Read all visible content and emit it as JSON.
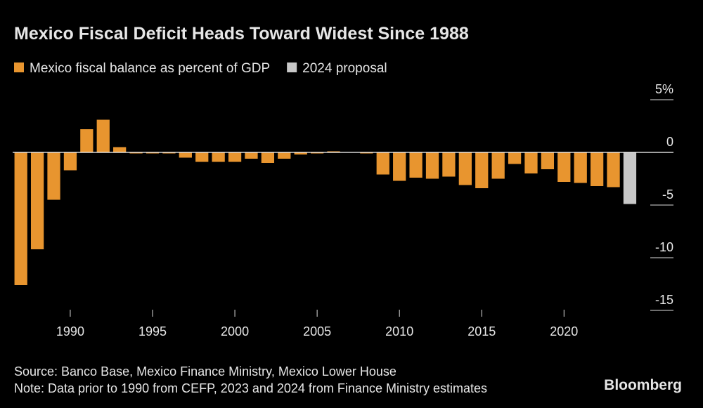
{
  "chart_data": {
    "type": "bar",
    "title": "Mexico Fiscal Deficit Heads Toward Widest Since 1988",
    "x": [
      1987,
      1988,
      1989,
      1990,
      1991,
      1992,
      1993,
      1994,
      1995,
      1996,
      1997,
      1998,
      1999,
      2000,
      2001,
      2002,
      2003,
      2004,
      2005,
      2006,
      2007,
      2008,
      2009,
      2010,
      2011,
      2012,
      2013,
      2014,
      2015,
      2016,
      2017,
      2018,
      2019,
      2020,
      2021,
      2022,
      2023,
      2024
    ],
    "series": [
      {
        "name": "Mexico fiscal balance as percent of GDP",
        "color": "#e8952f",
        "values": [
          -12.6,
          -9.2,
          -4.5,
          -1.7,
          2.2,
          3.1,
          0.5,
          -0.1,
          -0.1,
          -0.1,
          -0.5,
          -0.9,
          -0.9,
          -0.9,
          -0.6,
          -1.0,
          -0.6,
          -0.2,
          -0.1,
          0.1,
          0.0,
          -0.1,
          -2.1,
          -2.7,
          -2.4,
          -2.5,
          -2.3,
          -3.1,
          -3.4,
          -2.5,
          -1.1,
          -2.0,
          -1.6,
          -2.8,
          -2.9,
          -3.2,
          -3.3,
          null
        ]
      },
      {
        "name": "2024 proposal",
        "color": "#c8c8c8",
        "values": [
          null,
          null,
          null,
          null,
          null,
          null,
          null,
          null,
          null,
          null,
          null,
          null,
          null,
          null,
          null,
          null,
          null,
          null,
          null,
          null,
          null,
          null,
          null,
          null,
          null,
          null,
          null,
          null,
          null,
          null,
          null,
          null,
          null,
          null,
          null,
          null,
          null,
          -4.9
        ]
      }
    ],
    "xlim": [
      1986.5,
      2024.6
    ],
    "xticks": [
      1990,
      1995,
      2000,
      2005,
      2010,
      2015,
      2020
    ],
    "ylim": [
      -16,
      6
    ],
    "yticks": [
      {
        "value": 5,
        "label": "5%"
      },
      0,
      -5,
      -10,
      -15
    ],
    "source": "Source: Banco Base, Mexico Finance Ministry, Mexico Lower House",
    "note": "Note: Data prior to 1990 from CEFP, 2023 and 2024 from Finance Ministry estimates",
    "brand": "Bloomberg"
  }
}
